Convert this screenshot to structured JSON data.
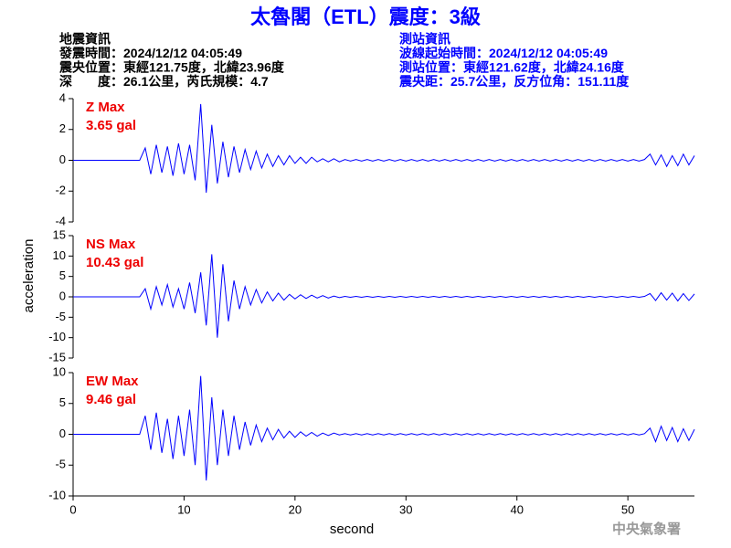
{
  "chart_data": {
    "type": "line",
    "title": "太魯閣（ETL）震度：3級",
    "x_label": "second",
    "y_label": "acceleration",
    "event_info": [
      "地震資訊",
      "發震時間：2024/12/12 04:05:49",
      "震央位置：東經121.75度，北緯23.96度",
      "深　　度：26.1公里，芮氏規模：4.7"
    ],
    "station_info": [
      "測站資訊",
      "波線起始時間：2024/12/12 04:05:49",
      "測站位置：東經121.62度，北緯24.16度",
      "震央距：25.7公里，反方位角：151.11度"
    ],
    "footer": "中央氣象署",
    "xlim": [
      0,
      56
    ],
    "xticks": [
      0,
      10,
      20,
      30,
      40,
      50
    ],
    "x": [
      0,
      0.5,
      1,
      1.5,
      2,
      2.5,
      3,
      3.5,
      4,
      4.5,
      5,
      5.5,
      6,
      6.5,
      7,
      7.5,
      8,
      8.5,
      9,
      9.5,
      10,
      10.5,
      11,
      11.5,
      12,
      12.5,
      13,
      13.5,
      14,
      14.5,
      15,
      15.5,
      16,
      16.5,
      17,
      17.5,
      18,
      18.5,
      19,
      19.5,
      20,
      20.5,
      21,
      21.5,
      22,
      22.5,
      23,
      23.5,
      24,
      24.5,
      25,
      25.5,
      26,
      26.5,
      27,
      27.5,
      28,
      28.5,
      29,
      29.5,
      30,
      30.5,
      31,
      31.5,
      32,
      32.5,
      33,
      33.5,
      34,
      34.5,
      35,
      35.5,
      36,
      36.5,
      37,
      37.5,
      38,
      38.5,
      39,
      39.5,
      40,
      40.5,
      41,
      41.5,
      42,
      42.5,
      43,
      43.5,
      44,
      44.5,
      45,
      45.5,
      46,
      46.5,
      47,
      47.5,
      48,
      48.5,
      49,
      49.5,
      50,
      50.5,
      51,
      51.5,
      52,
      52.5,
      53,
      53.5,
      54,
      54.5,
      55,
      55.5,
      56
    ],
    "panels": [
      {
        "name": "Z Max",
        "max_label": "3.65 gal",
        "color": "#0000ff",
        "ylim": [
          -4,
          4
        ],
        "yticks": [
          -4,
          -2,
          0,
          2,
          4
        ],
        "values": [
          0,
          0,
          0,
          0,
          0,
          0,
          0,
          0,
          0,
          0,
          0,
          0,
          0,
          0.8,
          -0.9,
          1,
          -0.8,
          0.9,
          -1,
          1.1,
          -0.9,
          1,
          -1.3,
          3.65,
          -2.1,
          2.3,
          -1.5,
          1.2,
          -1.1,
          0.9,
          -0.8,
          0.7,
          -0.6,
          0.6,
          -0.5,
          0.4,
          -0.4,
          0.3,
          -0.3,
          0.3,
          -0.2,
          0.2,
          -0.2,
          0.2,
          -0.1,
          0.1,
          -0.1,
          0.1,
          -0.1,
          0.05,
          -0.05,
          0.05,
          -0.05,
          0.05,
          -0.05,
          0.05,
          -0.05,
          0.05,
          -0.05,
          0.05,
          -0.05,
          0.05,
          -0.05,
          0.05,
          -0.05,
          0.05,
          -0.05,
          0.05,
          -0.05,
          0.05,
          -0.05,
          0.05,
          -0.05,
          0.05,
          -0.05,
          0.05,
          -0.05,
          0.05,
          -0.05,
          0.05,
          -0.05,
          0.05,
          -0.05,
          0.05,
          -0.05,
          0.05,
          -0.05,
          0.05,
          -0.05,
          0.05,
          -0.05,
          0.05,
          -0.05,
          0.05,
          -0.05,
          0.05,
          -0.05,
          0.05,
          -0.05,
          0.05,
          -0.05,
          0.05,
          -0.05,
          0.05,
          0.4,
          -0.3,
          0.35,
          -0.4,
          0.3,
          -0.35,
          0.4,
          -0.3,
          0.3
        ]
      },
      {
        "name": "NS Max",
        "max_label": "10.43 gal",
        "color": "#0000ff",
        "ylim": [
          -15,
          15
        ],
        "yticks": [
          -15,
          -10,
          -5,
          0,
          5,
          10,
          15
        ],
        "values": [
          0,
          0,
          0,
          0,
          0,
          0,
          0,
          0,
          0,
          0,
          0,
          0,
          0,
          2,
          -3,
          2.5,
          -2,
          3,
          -2.5,
          2,
          -3,
          3.5,
          -4,
          6,
          -7,
          10.43,
          -10,
          8,
          -6,
          4,
          -3,
          2.5,
          -2,
          1.8,
          -1.5,
          1.2,
          -1,
          0.9,
          -0.8,
          0.6,
          -0.5,
          0.5,
          -0.4,
          0.4,
          -0.3,
          0.3,
          -0.3,
          0.2,
          -0.2,
          0.1,
          -0.1,
          0.1,
          -0.1,
          0.1,
          -0.1,
          0.1,
          -0.1,
          0.1,
          -0.1,
          0.1,
          -0.1,
          0.1,
          -0.1,
          0.1,
          -0.1,
          0.1,
          -0.1,
          0.1,
          -0.1,
          0.1,
          -0.1,
          0.1,
          -0.1,
          0.1,
          -0.1,
          0.1,
          -0.1,
          0.1,
          -0.1,
          0.1,
          -0.1,
          0.1,
          -0.1,
          0.1,
          -0.1,
          0.1,
          -0.1,
          0.1,
          -0.1,
          0.1,
          -0.1,
          0.1,
          -0.1,
          0.1,
          -0.1,
          0.1,
          -0.1,
          0.1,
          -0.1,
          0.1,
          -0.1,
          0.1,
          -0.1,
          0.1,
          0.8,
          -0.9,
          1,
          -0.8,
          0.9,
          -1,
          0.8,
          -0.9,
          0.7
        ]
      },
      {
        "name": "EW Max",
        "max_label": "9.46 gal",
        "color": "#0000ff",
        "ylim": [
          -10,
          10
        ],
        "yticks": [
          -10,
          -5,
          0,
          5,
          10
        ],
        "values": [
          0,
          0,
          0,
          0,
          0,
          0,
          0,
          0,
          0,
          0,
          0,
          0,
          0,
          3,
          -2.5,
          3.5,
          -3,
          2.5,
          -4,
          3,
          -3.5,
          4,
          -5,
          9.46,
          -7.5,
          6,
          -5,
          4,
          -3.5,
          3,
          -2.5,
          2,
          -1.8,
          1.5,
          -1.2,
          1,
          -0.9,
          0.8,
          -0.6,
          0.5,
          -0.5,
          0.4,
          -0.3,
          0.3,
          -0.3,
          0.2,
          -0.2,
          0.2,
          -0.1,
          0.1,
          -0.1,
          0.1,
          -0.1,
          0.1,
          -0.1,
          0.1,
          -0.1,
          0.1,
          -0.1,
          0.1,
          -0.1,
          0.1,
          -0.1,
          0.1,
          -0.1,
          0.1,
          -0.1,
          0.1,
          -0.1,
          0.1,
          -0.1,
          0.1,
          -0.1,
          0.1,
          -0.1,
          0.1,
          -0.1,
          0.1,
          -0.1,
          0.1,
          -0.1,
          0.1,
          -0.1,
          0.1,
          -0.1,
          0.1,
          -0.1,
          0.1,
          -0.1,
          0.1,
          -0.1,
          0.1,
          -0.1,
          0.1,
          -0.1,
          0.1,
          -0.1,
          0.1,
          -0.1,
          0.1,
          -0.1,
          0.1,
          -0.1,
          0.1,
          1,
          -1.2,
          1.3,
          -1,
          1.1,
          -1.2,
          0.9,
          -1,
          0.8
        ]
      }
    ]
  }
}
